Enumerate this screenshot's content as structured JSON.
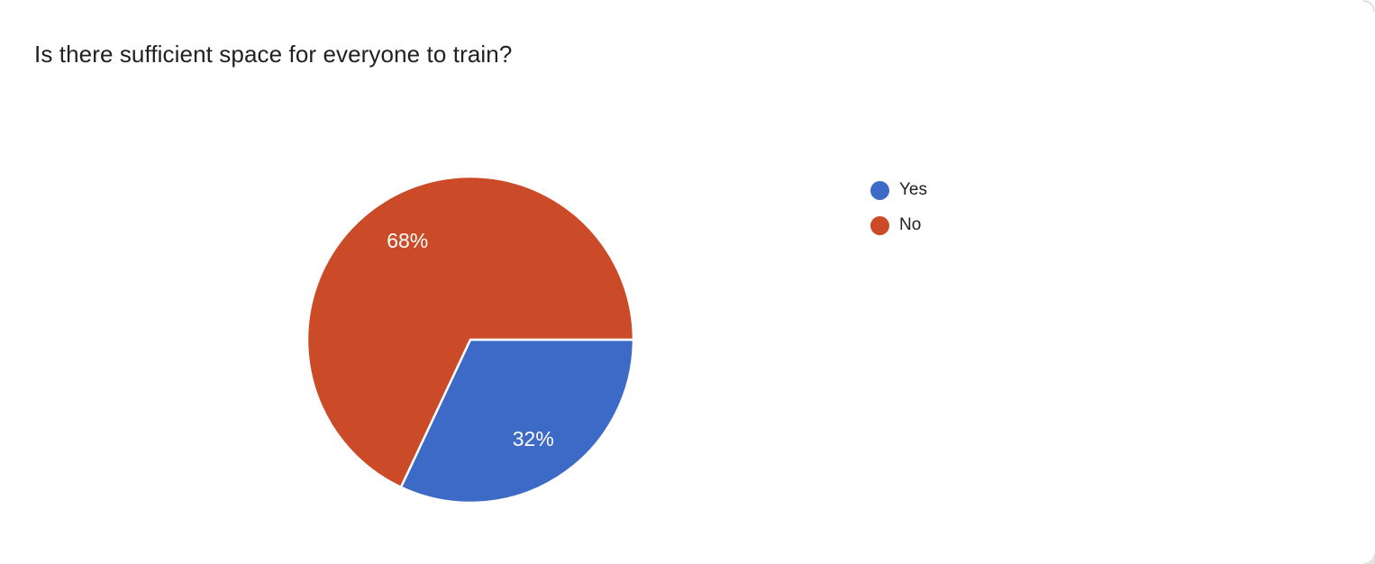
{
  "chart_data": {
    "type": "pie",
    "title": "Is there sufficient space for everyone to train?",
    "legend_position": "right",
    "start_angle_deg": 0,
    "direction": "clockwise",
    "slices": [
      {
        "label": "Yes",
        "value_pct": 32,
        "data_label": "32%",
        "color": "#3d6ac6"
      },
      {
        "label": "No",
        "value_pct": 68,
        "data_label": "68%",
        "color": "#cb4b28"
      }
    ],
    "data_label_color": "#ffffff",
    "title_color": "#202124",
    "legend_text_color": "#212121",
    "slice_separator_color": "#ffffff"
  }
}
